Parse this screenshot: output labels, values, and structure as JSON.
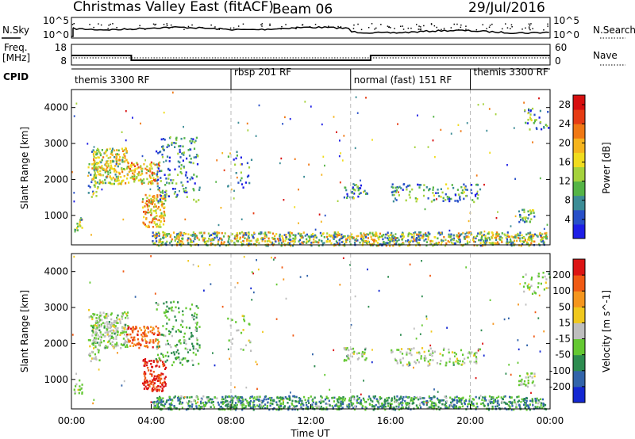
{
  "header": {
    "title": "Christmas Valley East (fitACF)",
    "beam": "Beam 06",
    "date": "29/Jul/2016"
  },
  "noise_panel": {
    "left_label": "N.Sky",
    "left_ticks": [
      "10^5",
      "10^0"
    ],
    "right_ticks": [
      "10^5",
      "10^0"
    ],
    "right_label": "N.Search"
  },
  "freq_panel": {
    "left_label_1": "Freq.",
    "left_label_2": "[MHz]",
    "left_ticks": [
      "18",
      "8"
    ],
    "right_ticks": [
      "60",
      "0"
    ],
    "right_label": "Nave"
  },
  "cpid": {
    "label": "CPID",
    "segments": [
      {
        "name": "themis 3300 RF",
        "start_hour": 0
      },
      {
        "name": "rbsp 201 RF",
        "start_hour": 8
      },
      {
        "name": "normal (fast) 151 RF",
        "start_hour": 14
      },
      {
        "name": "themis 3300 RF",
        "start_hour": 20
      }
    ]
  },
  "chart_data": [
    {
      "type": "heatmap",
      "title": "",
      "xlabel": "Time UT",
      "ylabel": "Slant Range [km]",
      "xlim": [
        0,
        24
      ],
      "ylim": [
        180,
        4500
      ],
      "xticks": [
        "00:00",
        "04:00",
        "08:00",
        "12:00",
        "16:00",
        "20:00",
        "00:00"
      ],
      "yticks": [
        1000,
        2000,
        3000,
        4000
      ],
      "colorbar": {
        "label": "Power [dB]",
        "ticks": [
          4,
          8,
          12,
          16,
          20,
          24,
          28
        ],
        "range": [
          0,
          30
        ],
        "colors": [
          "#1e1ee6",
          "#2850c8",
          "#3c8c96",
          "#55b446",
          "#a5d23c",
          "#f0dc1e",
          "#f5b41e",
          "#f07814",
          "#e63c14",
          "#d70f0f"
        ]
      },
      "scatter_regions": [
        {
          "t": [
            0.1,
            0.5
          ],
          "r": [
            600,
            1000
          ],
          "density": 0.55,
          "level": 0.5
        },
        {
          "t": [
            0.8,
            1.4
          ],
          "r": [
            1500,
            3000
          ],
          "density": 0.25,
          "level": 0.35
        },
        {
          "t": [
            1.0,
            2.8
          ],
          "r": [
            1900,
            2900
          ],
          "density": 0.6,
          "level": 0.5
        },
        {
          "t": [
            2.8,
            4.4
          ],
          "r": [
            1900,
            2500
          ],
          "density": 0.55,
          "level": 0.6
        },
        {
          "t": [
            3.5,
            4.7
          ],
          "r": [
            700,
            1600
          ],
          "density": 0.6,
          "level": 0.6
        },
        {
          "t": [
            4.2,
            6.4
          ],
          "r": [
            1400,
            3200
          ],
          "density": 0.2,
          "level": 0.25
        },
        {
          "t": [
            7.8,
            9.0
          ],
          "r": [
            1800,
            2800
          ],
          "density": 0.1,
          "level": 0.2
        },
        {
          "t": [
            13.6,
            14.8
          ],
          "r": [
            1500,
            1900
          ],
          "density": 0.4,
          "level": 0.3
        },
        {
          "t": [
            16.0,
            20.5
          ],
          "r": [
            1400,
            1900
          ],
          "density": 0.25,
          "level": 0.3
        },
        {
          "t": [
            22.4,
            23.2
          ],
          "r": [
            800,
            1200
          ],
          "density": 0.5,
          "level": 0.35
        },
        {
          "t": [
            22.6,
            24.0
          ],
          "r": [
            3400,
            4000
          ],
          "density": 0.2,
          "level": 0.3
        }
      ],
      "ground_band": {
        "t": [
          4.0,
          23.8
        ],
        "r": [
          180,
          560
        ],
        "density": 0.7,
        "level": 0.45
      }
    },
    {
      "type": "heatmap",
      "title": "",
      "xlabel": "Time UT",
      "ylabel": "Slant Range [km]",
      "xlim": [
        0,
        24
      ],
      "ylim": [
        180,
        4500
      ],
      "xticks": [
        "00:00",
        "04:00",
        "08:00",
        "12:00",
        "16:00",
        "20:00",
        "00:00"
      ],
      "yticks": [
        1000,
        2000,
        3000,
        4000
      ],
      "colorbar": {
        "label": "Velocity [m s^-1]",
        "ticks": [
          "200",
          "100",
          "50",
          "15",
          "-15",
          "-50",
          "-100",
          "-200"
        ],
        "range": [
          -250,
          250
        ],
        "colors": [
          "#1428d2",
          "#3264aa",
          "#2d8c50",
          "#64c832",
          "#bebebe",
          "#f0c81e",
          "#f5961e",
          "#f05a14",
          "#dc1414"
        ]
      },
      "scatter_regions": [
        {
          "t": [
            0.1,
            0.5
          ],
          "r": [
            600,
            1000
          ],
          "density": 0.55,
          "level": 0.45
        },
        {
          "t": [
            0.8,
            1.4
          ],
          "r": [
            1500,
            3000
          ],
          "density": 0.25,
          "level": 0.45
        },
        {
          "t": [
            1.0,
            2.8
          ],
          "r": [
            1900,
            2900
          ],
          "density": 0.6,
          "level": 0.45
        },
        {
          "t": [
            2.8,
            4.4
          ],
          "r": [
            1900,
            2500
          ],
          "density": 0.55,
          "level": 0.8
        },
        {
          "t": [
            3.5,
            4.7
          ],
          "r": [
            700,
            1600
          ],
          "density": 0.6,
          "level": 0.92
        },
        {
          "t": [
            4.2,
            6.4
          ],
          "r": [
            1400,
            3200
          ],
          "density": 0.2,
          "level": 0.35
        },
        {
          "t": [
            7.8,
            9.0
          ],
          "r": [
            1800,
            2800
          ],
          "density": 0.1,
          "level": 0.45
        },
        {
          "t": [
            13.6,
            14.8
          ],
          "r": [
            1500,
            1900
          ],
          "density": 0.4,
          "level": 0.45
        },
        {
          "t": [
            16.0,
            20.5
          ],
          "r": [
            1400,
            1900
          ],
          "density": 0.25,
          "level": 0.45
        },
        {
          "t": [
            22.4,
            23.2
          ],
          "r": [
            800,
            1200
          ],
          "density": 0.5,
          "level": 0.45
        },
        {
          "t": [
            22.6,
            24.0
          ],
          "r": [
            3400,
            4000
          ],
          "density": 0.2,
          "level": 0.45
        }
      ],
      "ground_band": {
        "t": [
          4.0,
          23.8
        ],
        "r": [
          180,
          560
        ],
        "density": 0.7,
        "level": 0.3
      }
    }
  ],
  "frequency_steps": [
    {
      "t_start": 0,
      "t_end": 3.0,
      "freq": 12.6
    },
    {
      "t_start": 3.0,
      "t_end": 15.0,
      "freq": 10.3
    },
    {
      "t_start": 15.0,
      "t_end": 24.0,
      "freq": 12.6
    }
  ]
}
